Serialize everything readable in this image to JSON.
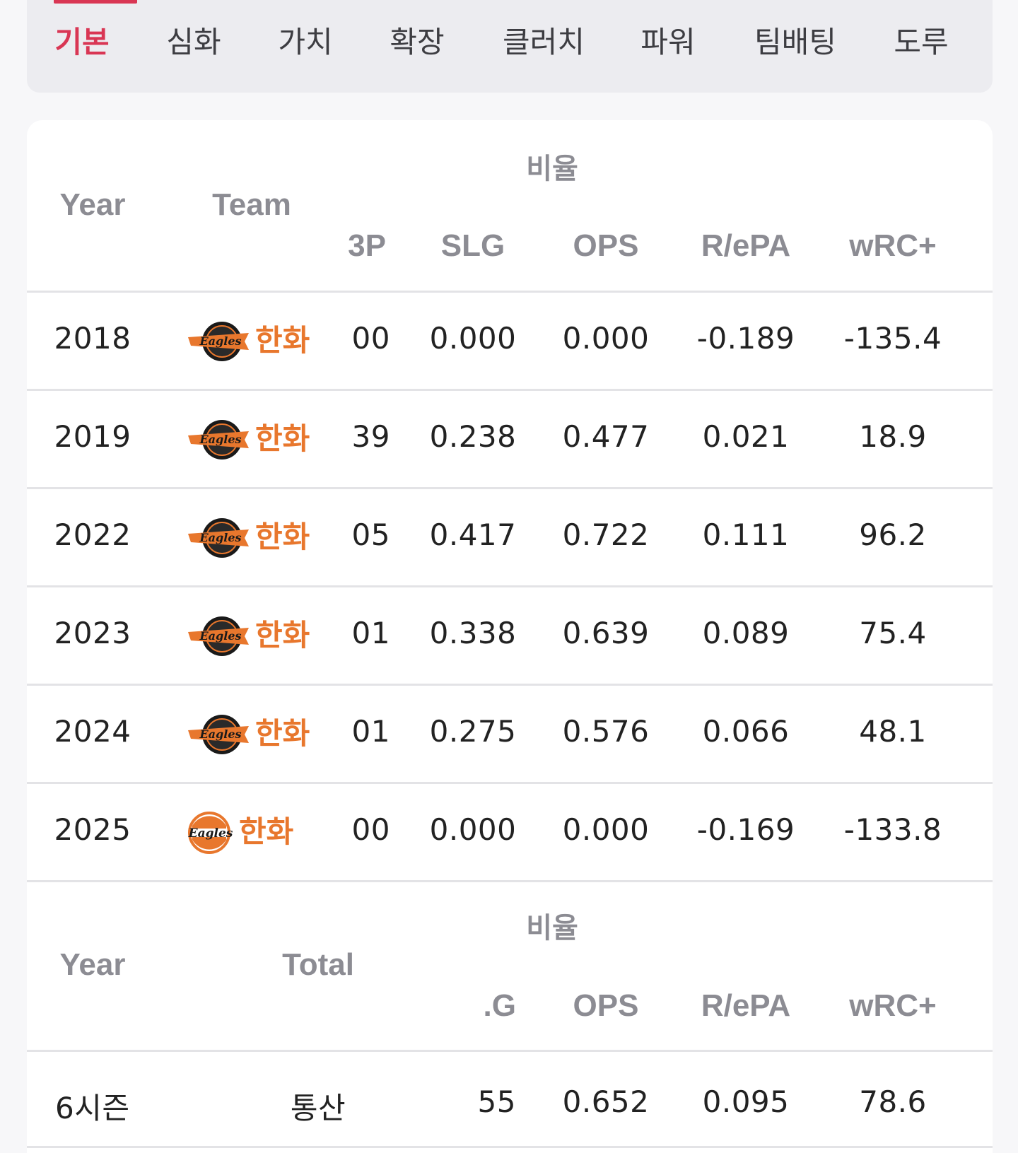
{
  "tabs": [
    "기본",
    "심화",
    "가치",
    "확장",
    "클러치",
    "파워",
    "팀배팅",
    "도루"
  ],
  "active_tab": "기본",
  "season_table": {
    "group_label": "비율",
    "headers": {
      "year": "Year",
      "team": "Team",
      "obp_partial": "3P",
      "slg": "SLG",
      "ops": "OPS",
      "repa": "R/ePA",
      "wrc": "wRC+"
    },
    "rows": [
      {
        "year": "2018",
        "team": "한화",
        "logo": "eagles-classic-logo",
        "obp": "00",
        "slg": "0.000",
        "ops": "0.000",
        "repa": "-0.189",
        "wrc": "-135.4"
      },
      {
        "year": "2019",
        "team": "한화",
        "logo": "eagles-classic-logo",
        "obp": "39",
        "slg": "0.238",
        "ops": "0.477",
        "repa": "0.021",
        "wrc": "18.9"
      },
      {
        "year": "2022",
        "team": "한화",
        "logo": "eagles-classic-logo",
        "obp": "05",
        "slg": "0.417",
        "ops": "0.722",
        "repa": "0.111",
        "wrc": "96.2"
      },
      {
        "year": "2023",
        "team": "한화",
        "logo": "eagles-classic-logo",
        "obp": "01",
        "slg": "0.338",
        "ops": "0.639",
        "repa": "0.089",
        "wrc": "75.4"
      },
      {
        "year": "2024",
        "team": "한화",
        "logo": "eagles-classic-logo",
        "obp": "01",
        "slg": "0.275",
        "ops": "0.576",
        "repa": "0.066",
        "wrc": "48.1"
      },
      {
        "year": "2025",
        "team": "한화",
        "logo": "eagles-new-logo",
        "obp": "00",
        "slg": "0.000",
        "ops": "0.000",
        "repa": "-0.169",
        "wrc": "-133.8"
      }
    ]
  },
  "total_table": {
    "group_label": "비율",
    "headers": {
      "year": "Year",
      "total": "Total",
      "slg_partial": ".G",
      "ops": "OPS",
      "repa": "R/ePA",
      "wrc": "wRC+"
    },
    "row": {
      "year": "6시즌",
      "total": "통산",
      "slg": "55",
      "ops": "0.652",
      "repa": "0.095",
      "wrc": "78.6"
    }
  },
  "colors": {
    "accent": "#d93654",
    "team": "#e8772d",
    "header_text": "#8c8c93"
  }
}
